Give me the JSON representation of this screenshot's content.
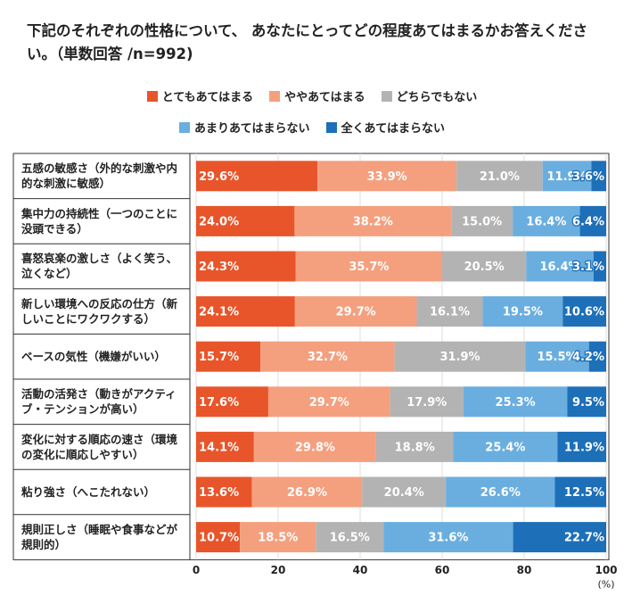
{
  "chart_data": {
    "type": "stacked-bar-horizontal",
    "title": "下記のそれぞれの性格について、 あなたにとってどの程度あてはまるかお答えください。（単数回答 /n=992)",
    "categories": [
      "五感の敏感さ（外的な刺激や内的な刺激に敏感）",
      "集中力の持続性（一つのことに没頭できる）",
      "喜怒哀楽の激しさ（よく笑う、泣くなど）",
      "新しい環境への反応の仕方（新しいことにワクワクする）",
      "ベースの気性（機嫌がいい）",
      "活動の活発さ（動きがアクティブ・テンションが高い）",
      "変化に対する順応の速さ（環境の変化に順応しやすい）",
      "粘り強さ（へこたれない）",
      "規則正しさ（睡眠や食事などが規則的）"
    ],
    "series": [
      {
        "name": "とてもあてはまる",
        "color": "#e8552a",
        "values": [
          29.6,
          24.0,
          24.3,
          24.1,
          15.7,
          17.6,
          14.1,
          13.6,
          10.7
        ],
        "value_labels": [
          "29.6%",
          "24.0%",
          "24.3%",
          "24.1%",
          "15.7%",
          "17.6%",
          "14.1%",
          "13.6%",
          "10.7%"
        ]
      },
      {
        "name": "ややあてはまる",
        "color": "#f4a07f",
        "values": [
          33.9,
          38.2,
          35.7,
          29.7,
          32.7,
          29.7,
          29.8,
          26.9,
          18.5
        ],
        "value_labels": [
          "33.9%",
          "38.2%",
          "35.7%",
          "29.7%",
          "32.7%",
          "29.7%",
          "29.8%",
          "26.9%",
          "18.5%"
        ]
      },
      {
        "name": "どちらでもない",
        "color": "#b3b3b3",
        "values": [
          21.0,
          15.0,
          20.5,
          16.1,
          31.9,
          17.9,
          18.8,
          20.4,
          16.5
        ],
        "value_labels": [
          "21.0%",
          "15.0%",
          "20.5%",
          "16.1%",
          "31.9%",
          "17.9%",
          "18.8%",
          "20.4%",
          "16.5%"
        ]
      },
      {
        "name": "あまりあてはまらない",
        "color": "#6aaee0",
        "values": [
          11.9,
          16.4,
          16.4,
          19.5,
          15.5,
          25.3,
          25.4,
          26.6,
          31.6
        ],
        "value_labels": [
          "11.9%",
          "16.4%",
          "16.4%",
          "19.5%",
          "15.5%",
          "25.3%",
          "25.4%",
          "26.6%",
          "31.6%"
        ]
      },
      {
        "name": "全くあてはまらない",
        "color": "#1d6fb8",
        "values": [
          3.6,
          6.4,
          3.1,
          10.6,
          4.2,
          9.5,
          11.9,
          12.5,
          22.7
        ],
        "value_labels": [
          "3.6%",
          "6.4%",
          "3.1%",
          "10.6%",
          "4.2%",
          "9.5%",
          "11.9%",
          "12.5%",
          "22.7%"
        ]
      }
    ],
    "xlim": [
      0,
      100
    ],
    "xticks": [
      0,
      20,
      40,
      60,
      80,
      100
    ],
    "xlabel": "(%)"
  }
}
